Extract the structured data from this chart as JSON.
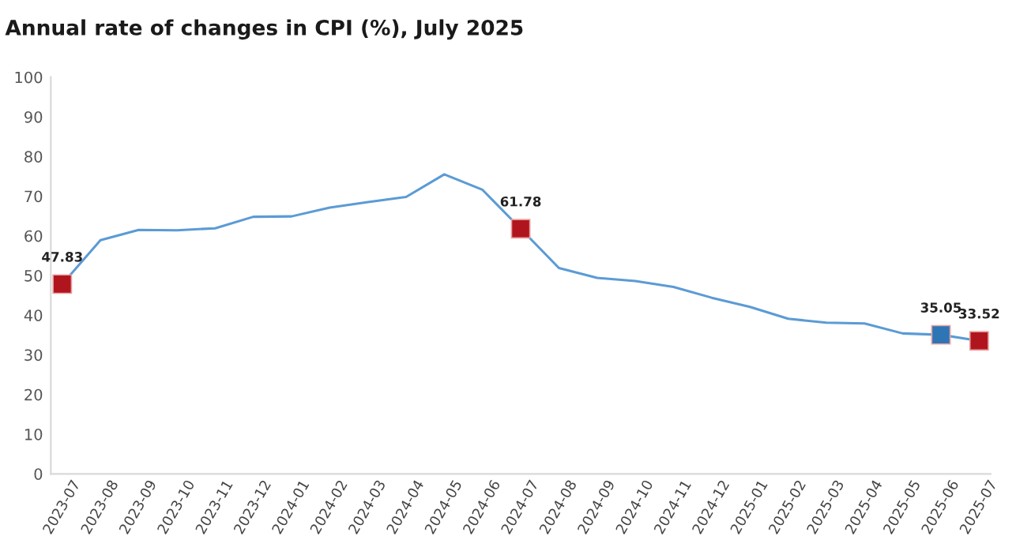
{
  "chart_data": {
    "type": "line",
    "title": "Annual rate of changes in CPI (%), July 2025",
    "categories": [
      "2023-07",
      "2023-08",
      "2023-09",
      "2023-10",
      "2023-11",
      "2023-12",
      "2024-01",
      "2024-02",
      "2024-03",
      "2024-04",
      "2024-05",
      "2024-06",
      "2024-07",
      "2024-08",
      "2024-09",
      "2024-10",
      "2024-11",
      "2024-12",
      "2025-01",
      "2025-02",
      "2025-03",
      "2025-04",
      "2025-05",
      "2025-06",
      "2025-07"
    ],
    "series": [
      {
        "color": "#5b9bd5",
        "values": [
          47.83,
          58.9,
          61.5,
          61.4,
          61.9,
          64.8,
          64.9,
          67.1,
          68.5,
          69.8,
          75.5,
          71.6,
          61.78,
          51.9,
          49.4,
          48.6,
          47.1,
          44.4,
          42.1,
          39.1,
          38.1,
          37.9,
          35.4,
          35.05,
          33.52
        ]
      },
      {
        "type": "scatter",
        "marker": "square",
        "values": [
          47.83,
          null,
          null,
          null,
          null,
          null,
          null,
          null,
          null,
          null,
          null,
          null,
          61.78,
          null,
          null,
          null,
          null,
          null,
          null,
          null,
          null,
          null,
          null,
          35.05,
          33.52
        ],
        "colors": [
          "#b0151d",
          null,
          null,
          null,
          null,
          null,
          null,
          null,
          null,
          null,
          null,
          null,
          "#b0151d",
          null,
          null,
          null,
          null,
          null,
          null,
          null,
          null,
          null,
          null,
          "#2e75b6",
          "#b0151d"
        ],
        "value_labels": [
          "47.83",
          null,
          null,
          null,
          null,
          null,
          null,
          null,
          null,
          null,
          null,
          null,
          "61.78",
          null,
          null,
          null,
          null,
          null,
          null,
          null,
          null,
          null,
          null,
          "35.05",
          "33.52"
        ]
      }
    ],
    "ylim": [
      0,
      100
    ],
    "yticks": [
      0,
      10,
      20,
      30,
      40,
      50,
      60,
      70,
      80,
      90,
      100
    ],
    "grid": false
  }
}
